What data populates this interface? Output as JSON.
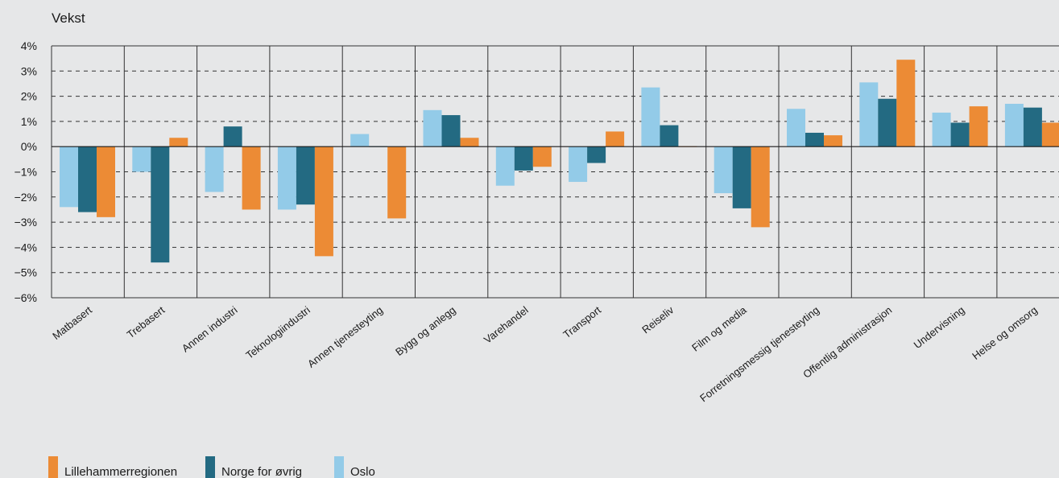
{
  "chart_data": {
    "type": "bar",
    "ylabel": "Vekst",
    "ylim": [
      -6,
      4
    ],
    "yticks": [
      4,
      3,
      2,
      1,
      0,
      -1,
      -2,
      -3,
      -4,
      -5,
      -6
    ],
    "ytick_labels": [
      "4%",
      "3%",
      "2%",
      "1%",
      "0%",
      "−1%",
      "−2%",
      "−3%",
      "−4%",
      "−5%",
      "−6%"
    ],
    "grid": "horizontal-dashed",
    "legend_position": "bottom-left",
    "categories": [
      "Matbasert",
      "Trebasert",
      "Annen industri",
      "Teknologiindustri",
      "Annen tjenesteyting",
      "Bygg og anlegg",
      "Varehandel",
      "Transport",
      "Reiseliv",
      "Film og media",
      "Forretningsmessig tjenesteyting",
      "Offentlig administrasjon",
      "Undervisning",
      "Helse og omsorg"
    ],
    "series": [
      {
        "name": "Oslo",
        "color": "#93cbe8",
        "values": [
          -2.4,
          -1.0,
          -1.8,
          -2.5,
          0.5,
          1.45,
          -1.55,
          -1.4,
          2.35,
          -1.85,
          1.5,
          2.55,
          1.35,
          1.7
        ]
      },
      {
        "name": "Norge for øvrig",
        "color": "#236a82",
        "values": [
          -2.6,
          -4.6,
          0.8,
          -2.3,
          0.0,
          1.25,
          -0.95,
          -0.65,
          0.85,
          -2.45,
          0.55,
          1.9,
          0.95,
          1.55
        ]
      },
      {
        "name": "Lillehammerregionen",
        "color": "#ec8b35",
        "values": [
          -2.8,
          0.35,
          -2.5,
          -4.35,
          -2.85,
          0.35,
          -0.8,
          0.6,
          0.0,
          -3.2,
          0.45,
          3.45,
          1.6,
          0.95
        ]
      }
    ],
    "legend_order": [
      "Lillehammerregionen",
      "Norge for øvrig",
      "Oslo"
    ]
  }
}
